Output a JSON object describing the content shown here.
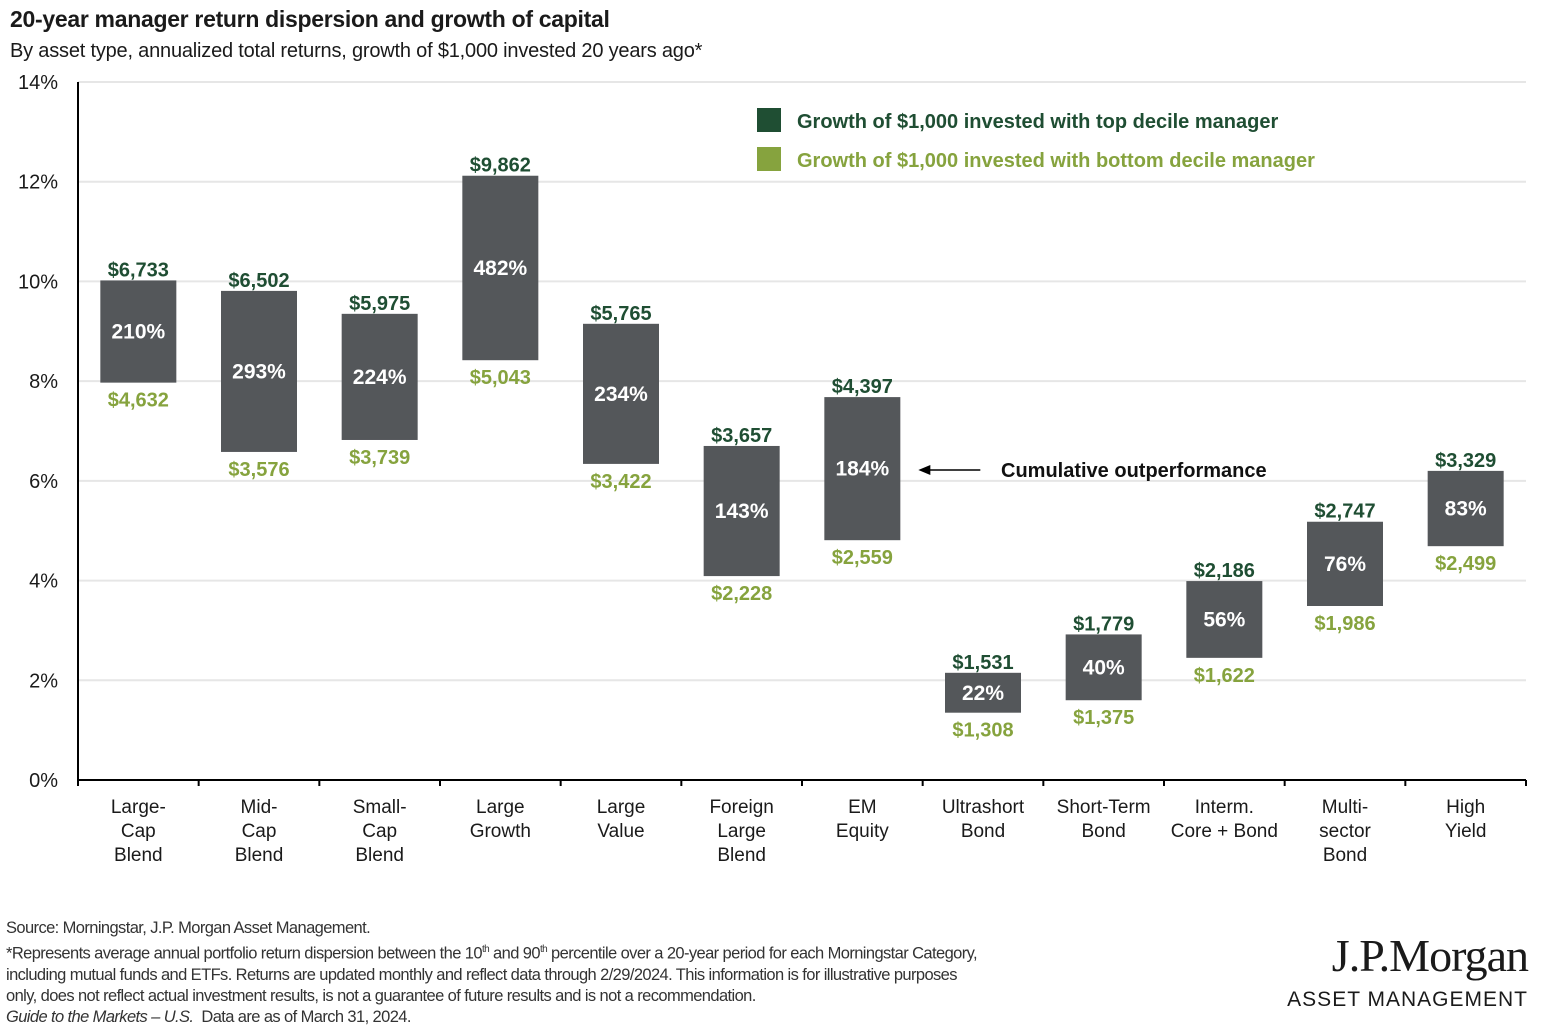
{
  "header": {
    "title": "20-year manager return dispersion and growth of capital",
    "subtitle": "By asset type, annualized total returns, growth of $1,000 invested 20 years ago*"
  },
  "colors": {
    "top_decile": "#1f4e33",
    "bottom_decile": "#86a33e",
    "bar": "#54575a",
    "grid": "#e6e6e6",
    "axis": "#000000"
  },
  "chart_data": {
    "type": "bar",
    "subtype": "floating-range",
    "title": "20-year manager return dispersion and growth of capital",
    "subtitle": "By asset type, annualized total returns, growth of $1,000 invested 20 years ago*",
    "xlabel": "",
    "ylabel": "",
    "ylim": [
      0,
      14
    ],
    "yticks": [
      0,
      2,
      4,
      6,
      8,
      10,
      12,
      14
    ],
    "ytick_labels": [
      "0%",
      "2%",
      "4%",
      "6%",
      "8%",
      "10%",
      "12%",
      "14%"
    ],
    "grid": true,
    "legend": {
      "placement": "top-right",
      "entries": [
        {
          "label": "Growth of $1,000 invested with top decile manager",
          "color_key": "top_decile"
        },
        {
          "label": "Growth of $1,000 invested with bottom decile manager",
          "color_key": "bottom_decile"
        }
      ]
    },
    "annotation": {
      "text": "Cumulative outperformance",
      "points_to": "EM Equity",
      "arrow": "left"
    },
    "categories": [
      [
        "Large-",
        "Cap",
        "Blend"
      ],
      [
        "Mid-",
        "Cap",
        "Blend"
      ],
      [
        "Small-",
        "Cap",
        "Blend"
      ],
      [
        "Large",
        "Growth"
      ],
      [
        "Large",
        "Value"
      ],
      [
        "Foreign",
        "Large",
        "Blend"
      ],
      [
        "EM",
        "Equity"
      ],
      [
        "Ultrashort",
        "Bond"
      ],
      [
        "Short-Term",
        "Bond"
      ],
      [
        "Interm.",
        "Core + Bond"
      ],
      [
        "Multi-",
        "sector",
        "Bond"
      ],
      [
        "High",
        "Yield"
      ]
    ],
    "series": [
      {
        "name": "Top decile annualized return (%)",
        "values": [
          10.02,
          9.81,
          9.35,
          12.12,
          9.15,
          6.7,
          7.68,
          2.15,
          2.92,
          3.99,
          5.18,
          6.2
        ]
      },
      {
        "name": "Bottom decile annualized return (%)",
        "values": [
          7.97,
          6.58,
          6.82,
          8.42,
          6.34,
          4.09,
          4.81,
          1.35,
          1.6,
          2.45,
          3.49,
          4.69
        ]
      }
    ],
    "top_labels": [
      "$6,733",
      "$6,502",
      "$5,975",
      "$9,862",
      "$5,765",
      "$3,657",
      "$4,397",
      "$1,531",
      "$1,779",
      "$2,186",
      "$2,747",
      "$3,329"
    ],
    "bottom_labels": [
      "$4,632",
      "$3,576",
      "$3,739",
      "$5,043",
      "$3,422",
      "$2,228",
      "$2,559",
      "$1,308",
      "$1,375",
      "$1,622",
      "$1,986",
      "$2,499"
    ],
    "outperformance_labels": [
      "210%",
      "293%",
      "224%",
      "482%",
      "234%",
      "143%",
      "184%",
      "22%",
      "40%",
      "56%",
      "76%",
      "83%"
    ]
  },
  "footer": {
    "source": "Source: Morningstar, J.P. Morgan Asset Management.",
    "note_line1_a": "*Represents average annual portfolio return dispersion between the 10",
    "note_sup1": "th",
    "note_line1_b": " and 90",
    "note_sup2": "th",
    "note_line1_c": " percentile over a 20-year period for each Morningstar Category,",
    "note_line2": "including mutual funds and ETFs. Returns are updated monthly and reflect data through 2/29/2024. This information is for illustrative purposes",
    "note_line3": "only, does not reflect actual investment results, is not a guarantee of future results and is not a recommendation.",
    "guide_italic": "Guide to the Markets – U.S.",
    "guide_rest": "  Data are as of March 31, 2024."
  },
  "logo": {
    "name": "J.P.Morgan",
    "sub": "ASSET MANAGEMENT"
  }
}
